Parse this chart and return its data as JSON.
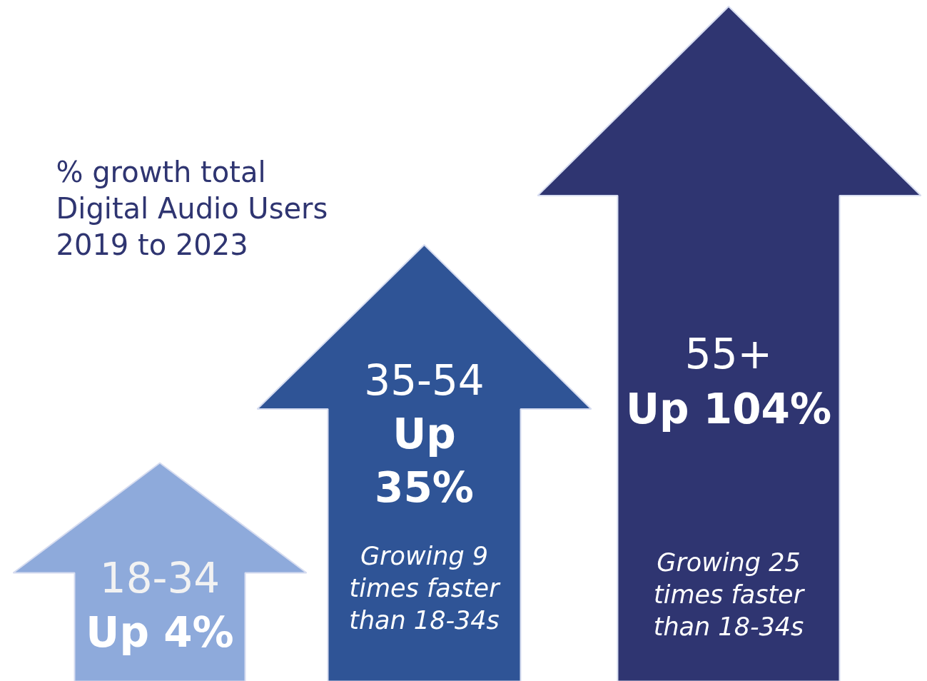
{
  "chart_data": {
    "type": "other",
    "title": "% growth total\nDigital Audio Users\n2019 to 2023",
    "categories": [
      "18-34",
      "35-54",
      "55+"
    ],
    "values": [
      4,
      35,
      104
    ],
    "value_labels": [
      "Up 4%",
      "Up 35%",
      "Up 104%"
    ],
    "colors": [
      "#8eaadb",
      "#2f5496",
      "#2f3571"
    ],
    "annotations": [
      {
        "text": "Growing 9\ntimes faster\nthan 18-34s",
        "x": "35-54"
      },
      {
        "text": "Growing 25\ntimes faster\nthan 18-34s",
        "x": "55+"
      }
    ]
  }
}
